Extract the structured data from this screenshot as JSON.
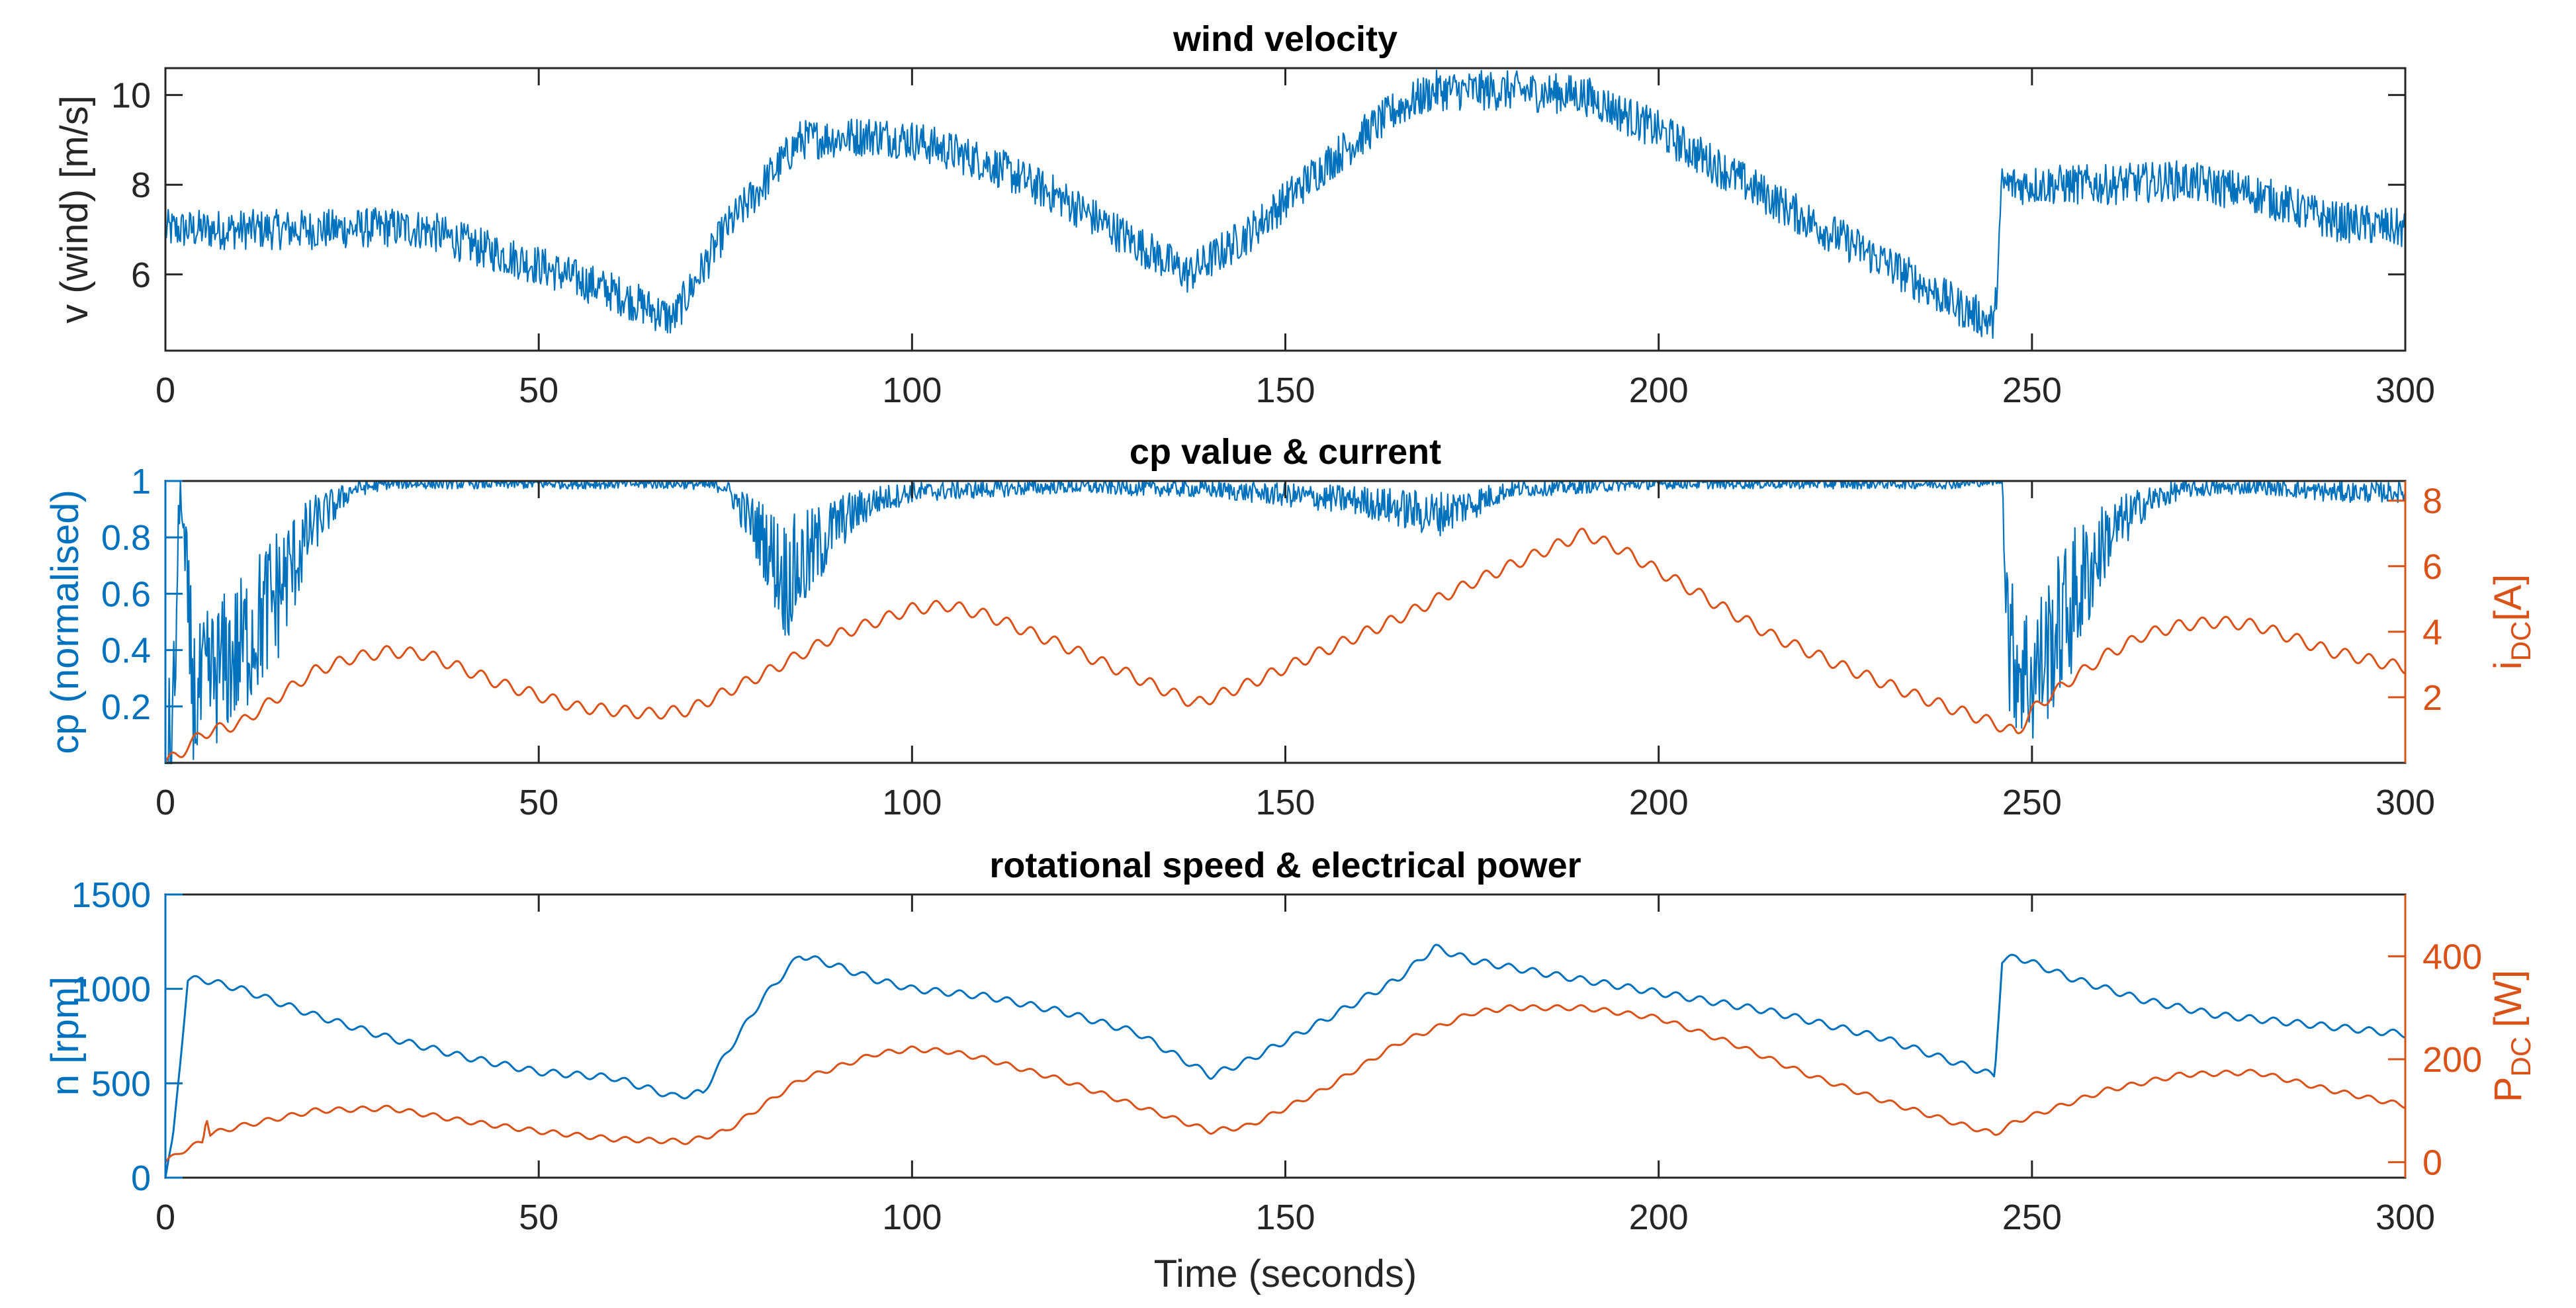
{
  "colors": {
    "blue": "#0072BD",
    "orange": "#D95319",
    "axis": "#262626"
  },
  "chart_data": [
    {
      "type": "line",
      "title": "wind velocity",
      "xlabel": "",
      "ylabel": "v (wind) [m/s]",
      "xlim": [
        0,
        300
      ],
      "ylim": [
        4.3,
        10.6
      ],
      "xticks": [
        0,
        50,
        100,
        150,
        200,
        250,
        300
      ],
      "yticks": [
        6,
        8,
        10
      ],
      "series": [
        {
          "name": "v (wind)",
          "color": "#0072BD",
          "noise": 0.45,
          "x": [
            0,
            10,
            20,
            30,
            35,
            40,
            50,
            60,
            68,
            75,
            85,
            95,
            100,
            110,
            120,
            130,
            137,
            145,
            155,
            165,
            170,
            180,
            190,
            200,
            210,
            220,
            230,
            240,
            245,
            246,
            250,
            260,
            270,
            280,
            290,
            300
          ],
          "y": [
            7.0,
            7.0,
            7.0,
            7.05,
            7.0,
            6.7,
            6.2,
            5.6,
            5.0,
            7.0,
            9.0,
            9.1,
            9.0,
            8.5,
            7.7,
            6.7,
            6.0,
            6.9,
            8.4,
            9.7,
            10.1,
            10.1,
            10.0,
            9.2,
            8.2,
            7.2,
            6.3,
            5.3,
            4.9,
            8.0,
            8.0,
            8.0,
            8.1,
            7.8,
            7.2,
            7.0
          ]
        }
      ]
    },
    {
      "type": "line",
      "title": "cp value & current",
      "xlabel": "",
      "ylabel": "cp (normalised)",
      "ylabel_right_main": "i",
      "ylabel_right_sub": "DC",
      "ylabel_right_unit": "[A]",
      "xlim": [
        0,
        300
      ],
      "ylim": [
        0,
        1
      ],
      "ylim_right": [
        0,
        8.6
      ],
      "xticks": [
        0,
        50,
        100,
        150,
        200,
        250,
        300
      ],
      "yticks": [
        0.2,
        0.4,
        0.6,
        0.8,
        1
      ],
      "yticks_right": [
        2,
        4,
        6,
        8
      ],
      "series": [
        {
          "name": "cp",
          "color": "#0072BD",
          "noise": 0.12,
          "x": [
            0,
            1,
            2,
            3,
            4,
            6,
            10,
            15,
            20,
            25,
            30,
            70,
            75,
            80,
            83,
            86,
            90,
            95,
            100,
            110,
            120,
            140,
            160,
            170,
            175,
            180,
            200,
            240,
            246,
            247,
            250,
            255,
            260,
            265,
            270,
            280,
            290,
            300
          ],
          "y": [
            0,
            0.1,
            1.0,
            0.5,
            0.2,
            0.3,
            0.4,
            0.6,
            0.85,
            0.97,
            0.99,
            0.99,
            0.98,
            0.8,
            0.65,
            0.72,
            0.85,
            0.93,
            0.96,
            0.97,
            0.98,
            0.97,
            0.93,
            0.88,
            0.92,
            0.97,
            0.99,
            0.99,
            1.0,
            0.4,
            0.3,
            0.55,
            0.8,
            0.92,
            0.97,
            0.98,
            0.96,
            0.96
          ]
        },
        {
          "name": "i DC [A]",
          "color": "#D95319",
          "axis": "right",
          "ripple": 0.18,
          "x": [
            0,
            2,
            5,
            10,
            15,
            20,
            25,
            30,
            35,
            45,
            55,
            65,
            70,
            80,
            90,
            100,
            105,
            110,
            120,
            130,
            138,
            145,
            155,
            165,
            175,
            185,
            190,
            195,
            205,
            215,
            225,
            235,
            245,
            248,
            250,
            255,
            260,
            265,
            270,
            275,
            280,
            290,
            300
          ],
          "y": [
            0,
            0.3,
            0.9,
            1.2,
            2.0,
            2.8,
            3.2,
            3.4,
            3.3,
            2.4,
            1.7,
            1.5,
            1.6,
            2.7,
            3.9,
            4.7,
            4.8,
            4.5,
            3.6,
            2.6,
            1.8,
            2.4,
            3.4,
            4.4,
            5.5,
            6.5,
            7.0,
            6.5,
            5.2,
            3.9,
            2.9,
            2.0,
            1.2,
            0.9,
            1.6,
            2.5,
            3.3,
            3.9,
            4.2,
            4.3,
            4.2,
            3.4,
            2.9
          ]
        }
      ]
    },
    {
      "type": "line",
      "title": "rotational speed & electrical power",
      "xlabel": "Time (seconds)",
      "ylabel": "n [rpm]",
      "ylabel_right_main": "P",
      "ylabel_right_sub": "DC",
      "ylabel_right_unit": "[W]",
      "xlim": [
        0,
        300
      ],
      "ylim": [
        0,
        1500
      ],
      "ylim_right": [
        -30,
        520
      ],
      "xticks": [
        0,
        50,
        100,
        150,
        200,
        250,
        300
      ],
      "yticks": [
        0,
        500,
        1000,
        1500
      ],
      "yticks_right": [
        0,
        200,
        400
      ],
      "series": [
        {
          "name": "n [rpm]",
          "color": "#0072BD",
          "ripple": 18,
          "x": [
            0,
            1,
            3,
            5,
            10,
            15,
            20,
            25,
            30,
            35,
            40,
            50,
            60,
            68,
            72,
            75,
            80,
            85,
            90,
            95,
            100,
            110,
            120,
            130,
            140,
            145,
            155,
            165,
            170,
            175,
            185,
            200,
            215,
            230,
            245,
            246,
            248,
            255,
            265,
            275,
            285,
            295,
            300
          ],
          "y": [
            0,
            200,
            1050,
            1050,
            1000,
            930,
            860,
            800,
            740,
            690,
            640,
            560,
            530,
            430,
            450,
            650,
            950,
            1180,
            1120,
            1050,
            1000,
            960,
            880,
            770,
            540,
            620,
            830,
            1050,
            1220,
            1150,
            1080,
            980,
            880,
            740,
            540,
            1150,
            1170,
            1060,
            940,
            860,
            820,
            780,
            760
          ]
        },
        {
          "name": "P DC [W]",
          "color": "#D95319",
          "axis": "right",
          "ripple": 5,
          "x": [
            0,
            2,
            5,
            5.5,
            6,
            10,
            20,
            30,
            40,
            50,
            60,
            70,
            75,
            85,
            95,
            100,
            105,
            110,
            120,
            130,
            140,
            145,
            155,
            165,
            175,
            180,
            190,
            200,
            210,
            220,
            230,
            240,
            245,
            248,
            252,
            260,
            270,
            280,
            290,
            300
          ],
          "y": [
            0,
            20,
            40,
            90,
            55,
            70,
            100,
            105,
            80,
            60,
            45,
            40,
            60,
            160,
            210,
            220,
            215,
            200,
            160,
            110,
            60,
            70,
            140,
            230,
            290,
            300,
            300,
            280,
            230,
            170,
            120,
            75,
            55,
            80,
            100,
            140,
            170,
            175,
            140,
            110
          ]
        }
      ]
    }
  ]
}
